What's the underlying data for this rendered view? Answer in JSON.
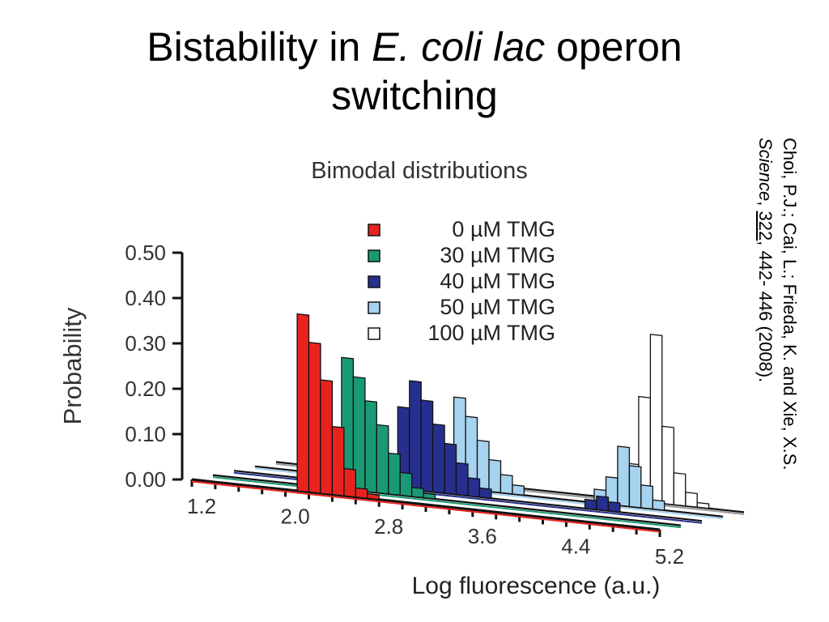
{
  "slide": {
    "title_line1_a": "Bistability in ",
    "title_line1_b": "E. coli lac",
    "title_line1_c": " operon",
    "title_line2": "switching"
  },
  "citation": {
    "authors": "Choi, P.J.; Cai, L.; Frieda, K. and Xie, X.S.",
    "journal": "Science",
    "sep1": ",  ",
    "volume": "322",
    "pages": ", 442- 446 (2008)."
  },
  "chart_data": {
    "type": "bar",
    "title": "Bimodal distributions",
    "xlabel": "Log fluorescence (a.u.)",
    "ylabel": "Probability",
    "ylim": [
      0,
      0.5
    ],
    "xlim": [
      1.2,
      5.2
    ],
    "y_ticks": [
      "0.00",
      "0.10",
      "0.20",
      "0.30",
      "0.40",
      "0.50"
    ],
    "x_ticks": [
      "1.2",
      "2.0",
      "2.8",
      "3.6",
      "4.4",
      "5.2"
    ],
    "bin_width": 0.1,
    "legend_position": "top-center",
    "series": [
      {
        "name": "0 µM TMG",
        "color": "#e8231f",
        "bins": [
          [
            2.1,
            0.39
          ],
          [
            2.2,
            0.33
          ],
          [
            2.3,
            0.25
          ],
          [
            2.4,
            0.15
          ],
          [
            2.5,
            0.06
          ],
          [
            2.6,
            0.02
          ],
          [
            2.7,
            0.01
          ]
        ]
      },
      {
        "name": "30 µM TMG",
        "color": "#1a9a74",
        "bins": [
          [
            2.3,
            0.29
          ],
          [
            2.4,
            0.25
          ],
          [
            2.5,
            0.2
          ],
          [
            2.6,
            0.15
          ],
          [
            2.7,
            0.09
          ],
          [
            2.8,
            0.05
          ],
          [
            2.9,
            0.02
          ],
          [
            3.0,
            0.01
          ]
        ]
      },
      {
        "name": "40 µM TMG",
        "color": "#272f8e",
        "bins": [
          [
            2.6,
            0.18
          ],
          [
            2.7,
            0.24
          ],
          [
            2.8,
            0.2
          ],
          [
            2.9,
            0.15
          ],
          [
            3.0,
            0.11
          ],
          [
            3.1,
            0.07
          ],
          [
            3.2,
            0.04
          ],
          [
            3.3,
            0.02
          ],
          [
            4.2,
            0.02
          ],
          [
            4.3,
            0.03
          ],
          [
            4.4,
            0.02
          ]
        ]
      },
      {
        "name": "50 µM TMG",
        "color": "#a6d3ef",
        "bins": [
          [
            2.9,
            0.2
          ],
          [
            3.0,
            0.16
          ],
          [
            3.1,
            0.11
          ],
          [
            3.2,
            0.07
          ],
          [
            3.3,
            0.04
          ],
          [
            3.4,
            0.02
          ],
          [
            4.1,
            0.03
          ],
          [
            4.2,
            0.06
          ],
          [
            4.3,
            0.13
          ],
          [
            4.4,
            0.09
          ],
          [
            4.5,
            0.05
          ],
          [
            4.6,
            0.02
          ]
        ]
      },
      {
        "name": "100 µM TMG",
        "color": "#ffffff",
        "bins": [
          [
            4.0,
            0.01
          ],
          [
            4.1,
            0.03
          ],
          [
            4.2,
            0.08
          ],
          [
            4.3,
            0.23
          ],
          [
            4.4,
            0.37
          ],
          [
            4.5,
            0.17
          ],
          [
            4.6,
            0.07
          ],
          [
            4.7,
            0.03
          ],
          [
            4.8,
            0.01
          ]
        ]
      }
    ]
  }
}
